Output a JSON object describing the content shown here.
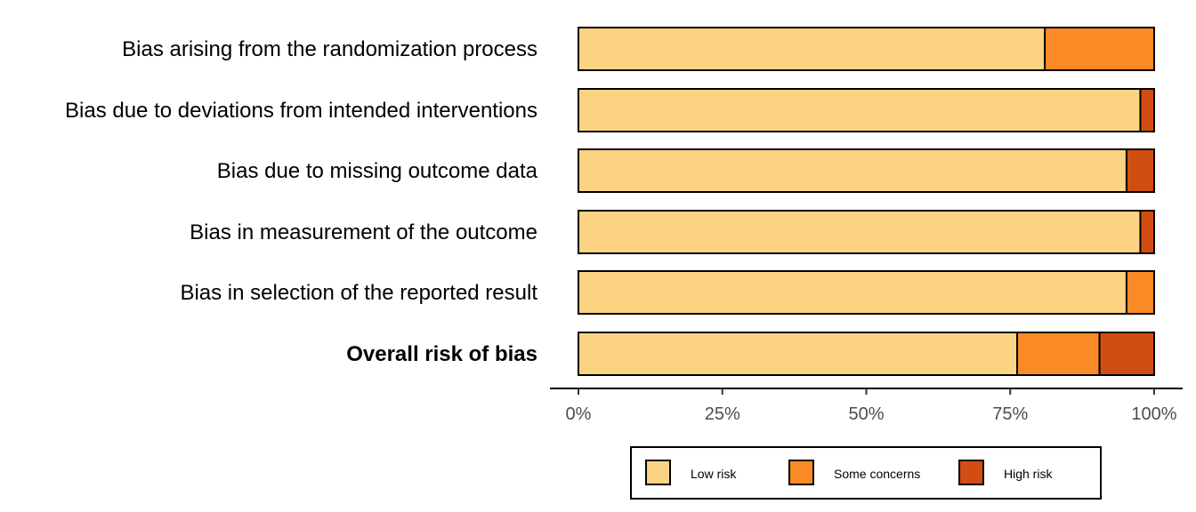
{
  "chart_data": {
    "type": "bar",
    "orientation": "horizontal",
    "stacked": true,
    "title": "",
    "xlabel": "",
    "ylabel": "",
    "xlim": [
      0,
      100
    ],
    "x_ticks": [
      "0%",
      "25%",
      "50%",
      "75%",
      "100%"
    ],
    "x_tick_values": [
      0,
      25,
      50,
      75,
      100
    ],
    "categories": [
      "Bias arising from the randomization process",
      "Bias due to deviations from intended interventions",
      "Bias due to missing outcome data",
      "Bias in measurement of the outcome",
      "Bias in selection of the reported result",
      "Overall risk of bias"
    ],
    "bold_categories": [
      "Overall risk of bias"
    ],
    "series": [
      {
        "name": "Low risk",
        "color": "#fcd383",
        "values": [
          81,
          97.6,
          95.2,
          97.6,
          95.2,
          76.2
        ]
      },
      {
        "name": "Some concerns",
        "color": "#fa8a25",
        "values": [
          19,
          0,
          0,
          0,
          4.8,
          14.3
        ]
      },
      {
        "name": "High risk",
        "color": "#d14e12",
        "values": [
          0,
          2.4,
          4.8,
          2.4,
          0,
          9.5
        ]
      }
    ],
    "legend_position": "bottom",
    "grid": false
  }
}
